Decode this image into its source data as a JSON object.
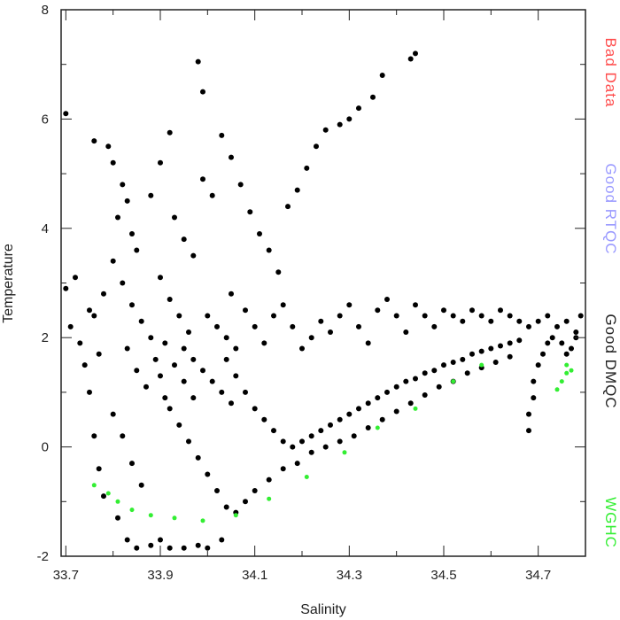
{
  "chart_data": {
    "type": "scatter",
    "title": "",
    "xlabel": "Salinity",
    "ylabel": "Temperature",
    "xlim": [
      33.69,
      34.8
    ],
    "ylim": [
      -2,
      8
    ],
    "x_ticks": [
      "33.7",
      "33.9",
      "34.1",
      "34.3",
      "34.5",
      "34.7"
    ],
    "y_ticks": [
      "-2",
      "0",
      "2",
      "4",
      "6",
      "8"
    ],
    "grid": false,
    "legend_placement": "right side, vertical text",
    "legend": [
      {
        "label": "Bad Data",
        "color": "#ff4d4d"
      },
      {
        "label": "Good RTQC",
        "color": "#9a9aff"
      },
      {
        "label": "Good DMQC",
        "color": "#222222"
      },
      {
        "label": "WGHC",
        "color": "#33ee33"
      }
    ],
    "series": [
      {
        "name": "Good DMQC",
        "color": "#000000",
        "points": [
          [
            33.7,
            6.1
          ],
          [
            33.71,
            2.2
          ],
          [
            33.7,
            2.9
          ],
          [
            33.72,
            3.1
          ],
          [
            33.74,
            1.5
          ],
          [
            33.75,
            1.0
          ],
          [
            33.76,
            0.2
          ],
          [
            33.77,
            -0.4
          ],
          [
            33.78,
            -0.9
          ],
          [
            33.76,
            2.4
          ],
          [
            33.78,
            2.8
          ],
          [
            33.8,
            3.4
          ],
          [
            33.76,
            5.6
          ],
          [
            33.79,
            5.5
          ],
          [
            33.8,
            5.2
          ],
          [
            33.82,
            4.8
          ],
          [
            33.81,
            4.2
          ],
          [
            33.83,
            4.5
          ],
          [
            33.84,
            3.9
          ],
          [
            33.85,
            3.6
          ],
          [
            33.82,
            3.0
          ],
          [
            33.84,
            2.6
          ],
          [
            33.86,
            2.3
          ],
          [
            33.83,
            1.8
          ],
          [
            33.85,
            1.4
          ],
          [
            33.87,
            1.1
          ],
          [
            33.8,
            0.6
          ],
          [
            33.82,
            0.2
          ],
          [
            33.84,
            -0.3
          ],
          [
            33.86,
            -0.7
          ],
          [
            33.81,
            -1.3
          ],
          [
            33.83,
            -1.7
          ],
          [
            33.85,
            -1.85
          ],
          [
            33.88,
            -1.8
          ],
          [
            33.9,
            -1.7
          ],
          [
            33.92,
            -1.85
          ],
          [
            33.95,
            -1.85
          ],
          [
            33.98,
            -1.8
          ],
          [
            34.0,
            -1.85
          ],
          [
            34.03,
            -1.7
          ],
          [
            33.9,
            3.1
          ],
          [
            33.92,
            2.7
          ],
          [
            33.94,
            2.4
          ],
          [
            33.96,
            2.1
          ],
          [
            33.91,
            1.9
          ],
          [
            33.93,
            1.5
          ],
          [
            33.95,
            1.2
          ],
          [
            33.97,
            0.9
          ],
          [
            33.92,
            0.7
          ],
          [
            33.94,
            0.4
          ],
          [
            33.96,
            0.1
          ],
          [
            33.98,
            -0.2
          ],
          [
            34.0,
            -0.5
          ],
          [
            34.02,
            -0.8
          ],
          [
            34.04,
            -1.1
          ],
          [
            34.06,
            -1.2
          ],
          [
            34.08,
            -1.0
          ],
          [
            33.9,
            5.2
          ],
          [
            33.92,
            5.75
          ],
          [
            33.88,
            4.6
          ],
          [
            33.93,
            4.2
          ],
          [
            33.95,
            3.8
          ],
          [
            33.97,
            3.5
          ],
          [
            33.99,
            4.9
          ],
          [
            34.01,
            4.6
          ],
          [
            33.98,
            7.05
          ],
          [
            33.99,
            6.5
          ],
          [
            34.03,
            5.7
          ],
          [
            34.05,
            5.3
          ],
          [
            34.07,
            4.8
          ],
          [
            34.09,
            4.3
          ],
          [
            34.11,
            3.9
          ],
          [
            34.13,
            3.6
          ],
          [
            34.15,
            3.2
          ],
          [
            34.17,
            4.4
          ],
          [
            34.19,
            4.7
          ],
          [
            34.21,
            5.1
          ],
          [
            34.23,
            5.5
          ],
          [
            34.25,
            5.8
          ],
          [
            34.28,
            5.9
          ],
          [
            34.3,
            6.0
          ],
          [
            34.32,
            6.2
          ],
          [
            34.35,
            6.4
          ],
          [
            34.37,
            6.8
          ],
          [
            34.43,
            7.1
          ],
          [
            34.44,
            7.2
          ],
          [
            34.05,
            2.8
          ],
          [
            34.08,
            2.5
          ],
          [
            34.1,
            2.2
          ],
          [
            34.12,
            1.9
          ],
          [
            34.14,
            2.4
          ],
          [
            34.16,
            2.6
          ],
          [
            34.18,
            2.2
          ],
          [
            34.2,
            1.8
          ],
          [
            34.22,
            2.0
          ],
          [
            34.24,
            2.3
          ],
          [
            34.26,
            2.1
          ],
          [
            34.28,
            2.4
          ],
          [
            34.3,
            2.6
          ],
          [
            34.32,
            2.2
          ],
          [
            34.34,
            1.9
          ],
          [
            34.36,
            2.5
          ],
          [
            34.38,
            2.7
          ],
          [
            34.4,
            2.4
          ],
          [
            34.42,
            2.1
          ],
          [
            34.44,
            2.6
          ],
          [
            34.46,
            2.4
          ],
          [
            34.48,
            2.2
          ],
          [
            34.5,
            2.5
          ],
          [
            34.52,
            2.4
          ],
          [
            34.54,
            2.3
          ],
          [
            34.56,
            2.5
          ],
          [
            34.58,
            2.4
          ],
          [
            34.6,
            2.3
          ],
          [
            34.62,
            2.5
          ],
          [
            34.64,
            2.4
          ],
          [
            34.66,
            2.3
          ],
          [
            34.68,
            2.2
          ],
          [
            34.7,
            2.3
          ],
          [
            34.72,
            2.4
          ],
          [
            34.74,
            2.2
          ],
          [
            34.76,
            2.3
          ],
          [
            34.78,
            2.1
          ],
          [
            34.79,
            2.4
          ],
          [
            34.04,
            1.6
          ],
          [
            34.06,
            1.3
          ],
          [
            34.08,
            1.0
          ],
          [
            34.1,
            0.7
          ],
          [
            34.12,
            0.5
          ],
          [
            34.14,
            0.3
          ],
          [
            34.16,
            0.1
          ],
          [
            34.18,
            0.0
          ],
          [
            34.2,
            0.1
          ],
          [
            34.22,
            0.2
          ],
          [
            34.24,
            0.3
          ],
          [
            34.26,
            0.4
          ],
          [
            34.28,
            0.5
          ],
          [
            34.3,
            0.6
          ],
          [
            34.32,
            0.7
          ],
          [
            34.34,
            0.8
          ],
          [
            34.36,
            0.9
          ],
          [
            34.38,
            1.0
          ],
          [
            34.4,
            1.1
          ],
          [
            34.42,
            1.2
          ],
          [
            34.44,
            1.25
          ],
          [
            34.46,
            1.35
          ],
          [
            34.48,
            1.4
          ],
          [
            34.5,
            1.5
          ],
          [
            34.52,
            1.55
          ],
          [
            34.54,
            1.6
          ],
          [
            34.56,
            1.7
          ],
          [
            34.58,
            1.75
          ],
          [
            34.6,
            1.8
          ],
          [
            34.62,
            1.85
          ],
          [
            34.64,
            1.9
          ],
          [
            34.66,
            1.95
          ],
          [
            34.68,
            0.3
          ],
          [
            34.68,
            0.6
          ],
          [
            34.69,
            0.9
          ],
          [
            34.69,
            1.2
          ],
          [
            34.7,
            1.5
          ],
          [
            34.71,
            1.7
          ],
          [
            34.72,
            1.9
          ],
          [
            34.73,
            2.0
          ],
          [
            34.75,
            1.9
          ],
          [
            34.76,
            1.7
          ],
          [
            34.77,
            1.8
          ],
          [
            34.78,
            2.0
          ],
          [
            34.1,
            -0.8
          ],
          [
            34.13,
            -0.6
          ],
          [
            34.16,
            -0.4
          ],
          [
            34.19,
            -0.3
          ],
          [
            34.22,
            -0.1
          ],
          [
            34.25,
            0.0
          ],
          [
            34.28,
            0.1
          ],
          [
            34.31,
            0.2
          ],
          [
            34.34,
            0.35
          ],
          [
            34.37,
            0.5
          ],
          [
            34.4,
            0.65
          ],
          [
            34.43,
            0.8
          ],
          [
            34.46,
            0.95
          ],
          [
            34.49,
            1.1
          ],
          [
            34.52,
            1.2
          ],
          [
            34.55,
            1.35
          ],
          [
            34.58,
            1.45
          ],
          [
            34.61,
            1.55
          ],
          [
            34.64,
            1.65
          ],
          [
            33.95,
            1.8
          ],
          [
            33.97,
            1.6
          ],
          [
            33.99,
            1.4
          ],
          [
            34.01,
            1.2
          ],
          [
            34.03,
            1.0
          ],
          [
            34.05,
            0.8
          ],
          [
            34.0,
            2.4
          ],
          [
            34.02,
            2.2
          ],
          [
            34.04,
            2.0
          ],
          [
            34.06,
            1.8
          ],
          [
            33.88,
            2.0
          ],
          [
            33.89,
            1.6
          ],
          [
            33.9,
            1.3
          ],
          [
            33.91,
            0.9
          ],
          [
            33.73,
            1.9
          ],
          [
            33.75,
            2.5
          ],
          [
            33.77,
            1.7
          ]
        ]
      },
      {
        "name": "WGHC",
        "color": "#33ee33",
        "points": [
          [
            33.76,
            -0.7
          ],
          [
            33.79,
            -0.85
          ],
          [
            33.81,
            -1.0
          ],
          [
            33.84,
            -1.15
          ],
          [
            33.88,
            -1.25
          ],
          [
            33.93,
            -1.3
          ],
          [
            33.99,
            -1.35
          ],
          [
            34.06,
            -1.25
          ],
          [
            34.13,
            -0.95
          ],
          [
            34.21,
            -0.55
          ],
          [
            34.29,
            -0.1
          ],
          [
            34.36,
            0.35
          ],
          [
            34.44,
            0.7
          ],
          [
            34.52,
            1.2
          ],
          [
            34.58,
            1.5
          ],
          [
            34.74,
            1.05
          ],
          [
            34.75,
            1.2
          ],
          [
            34.76,
            1.35
          ],
          [
            34.76,
            1.5
          ],
          [
            34.77,
            1.4
          ]
        ]
      }
    ]
  }
}
